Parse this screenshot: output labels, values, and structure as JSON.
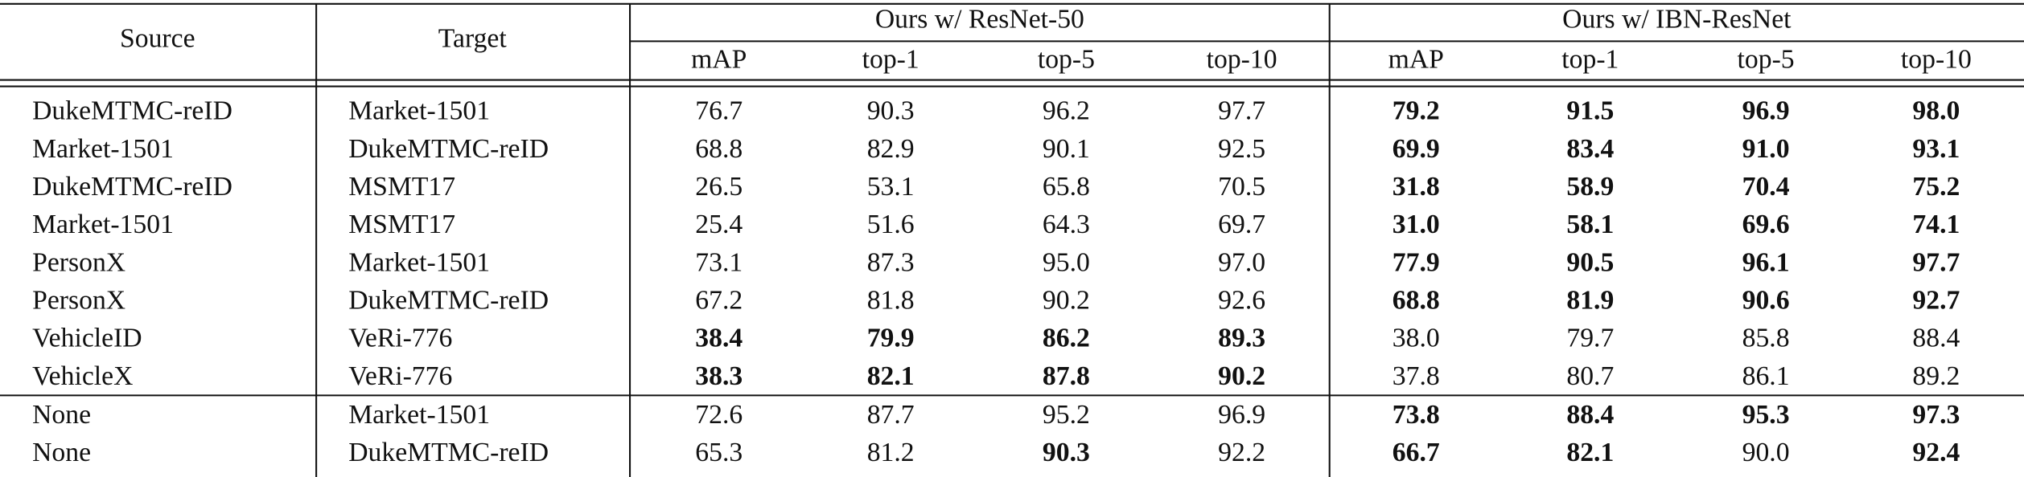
{
  "table": {
    "header": {
      "source": "Source",
      "target": "Target",
      "groups": [
        {
          "title": "Ours w/ ResNet-50",
          "columns": [
            "mAP",
            "top-1",
            "top-5",
            "top-10"
          ]
        },
        {
          "title": "Ours w/ IBN-ResNet",
          "columns": [
            "mAP",
            "top-1",
            "top-5",
            "top-10"
          ]
        }
      ]
    },
    "sections": [
      [
        {
          "source": "DukeMTMC-reID",
          "target": "Market-1501",
          "values": [
            "76.7",
            "90.3",
            "96.2",
            "97.7",
            "79.2",
            "91.5",
            "96.9",
            "98.0"
          ],
          "bold": [
            false,
            false,
            false,
            false,
            true,
            true,
            true,
            true
          ]
        },
        {
          "source": "Market-1501",
          "target": "DukeMTMC-reID",
          "values": [
            "68.8",
            "82.9",
            "90.1",
            "92.5",
            "69.9",
            "83.4",
            "91.0",
            "93.1"
          ],
          "bold": [
            false,
            false,
            false,
            false,
            true,
            true,
            true,
            true
          ]
        },
        {
          "source": "DukeMTMC-reID",
          "target": "MSMT17",
          "values": [
            "26.5",
            "53.1",
            "65.8",
            "70.5",
            "31.8",
            "58.9",
            "70.4",
            "75.2"
          ],
          "bold": [
            false,
            false,
            false,
            false,
            true,
            true,
            true,
            true
          ]
        },
        {
          "source": "Market-1501",
          "target": "MSMT17",
          "values": [
            "25.4",
            "51.6",
            "64.3",
            "69.7",
            "31.0",
            "58.1",
            "69.6",
            "74.1"
          ],
          "bold": [
            false,
            false,
            false,
            false,
            true,
            true,
            true,
            true
          ]
        },
        {
          "source": "PersonX",
          "target": "Market-1501",
          "values": [
            "73.1",
            "87.3",
            "95.0",
            "97.0",
            "77.9",
            "90.5",
            "96.1",
            "97.7"
          ],
          "bold": [
            false,
            false,
            false,
            false,
            true,
            true,
            true,
            true
          ]
        },
        {
          "source": "PersonX",
          "target": "DukeMTMC-reID",
          "values": [
            "67.2",
            "81.8",
            "90.2",
            "92.6",
            "68.8",
            "81.9",
            "90.6",
            "92.7"
          ],
          "bold": [
            false,
            false,
            false,
            false,
            true,
            true,
            true,
            true
          ]
        },
        {
          "source": "VehicleID",
          "target": "VeRi-776",
          "values": [
            "38.4",
            "79.9",
            "86.2",
            "89.3",
            "38.0",
            "79.7",
            "85.8",
            "88.4"
          ],
          "bold": [
            true,
            true,
            true,
            true,
            false,
            false,
            false,
            false
          ]
        },
        {
          "source": "VehicleX",
          "target": "VeRi-776",
          "values": [
            "38.3",
            "82.1",
            "87.8",
            "90.2",
            "37.8",
            "80.7",
            "86.1",
            "89.2"
          ],
          "bold": [
            true,
            true,
            true,
            true,
            false,
            false,
            false,
            false
          ]
        }
      ],
      [
        {
          "source": "None",
          "target": "Market-1501",
          "values": [
            "72.6",
            "87.7",
            "95.2",
            "96.9",
            "73.8",
            "88.4",
            "95.3",
            "97.3"
          ],
          "bold": [
            false,
            false,
            false,
            false,
            true,
            true,
            true,
            true
          ]
        },
        {
          "source": "None",
          "target": "DukeMTMC-reID",
          "values": [
            "65.3",
            "81.2",
            "90.3",
            "92.2",
            "66.7",
            "82.1",
            "90.0",
            "92.4"
          ],
          "bold": [
            false,
            false,
            true,
            false,
            true,
            true,
            false,
            true
          ]
        }
      ]
    ]
  }
}
